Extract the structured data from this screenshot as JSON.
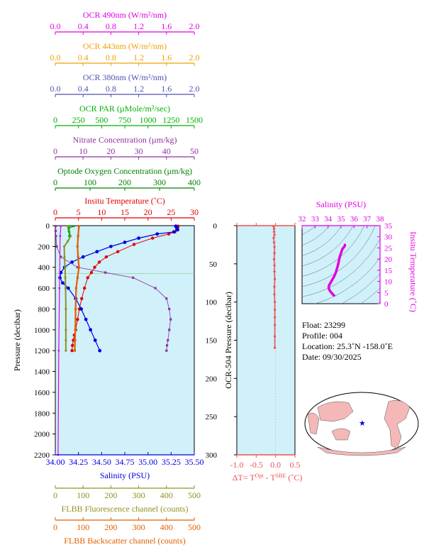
{
  "colors": {
    "ocr490": "#e000e0",
    "ocr443": "#f0a000",
    "ocr380": "#5050b0",
    "par": "#00b000",
    "nitrate": "#9030a0",
    "oxygen": "#008000",
    "temperature": "#e00000",
    "salinity": "#0000e0",
    "fluorescence": "#909020",
    "backscatter": "#e06000",
    "deltaT": "#f05050",
    "panel_bg": "#d0f0fa"
  },
  "top_axes": [
    {
      "key": "ocr490",
      "label": "OCR 490nm (W/m²/nm)",
      "ticks": [
        "0.0",
        "0.4",
        "0.8",
        "1.2",
        "1.6",
        "2.0"
      ],
      "range": [
        0,
        2
      ]
    },
    {
      "key": "ocr443",
      "label": "OCR 443nm (W/m²/nm)",
      "ticks": [
        "0.0",
        "0.4",
        "0.8",
        "1.2",
        "1.6",
        "2.0"
      ],
      "range": [
        0,
        2
      ]
    },
    {
      "key": "ocr380",
      "label": "OCR 380nm (W/m²/nm)",
      "ticks": [
        "0.0",
        "0.4",
        "0.8",
        "1.2",
        "1.6",
        "2.0"
      ],
      "range": [
        0,
        2
      ]
    },
    {
      "key": "par",
      "label": "OCR PAR (µMole/m²/sec)",
      "ticks": [
        "0",
        "250",
        "500",
        "750",
        "1000",
        "1250",
        "1500"
      ],
      "range": [
        0,
        1500
      ]
    },
    {
      "key": "nitrate",
      "label": "Nitrate Concentration (µm/kg)",
      "ticks": [
        "0",
        "10",
        "20",
        "30",
        "40",
        "50"
      ],
      "range": [
        0,
        50
      ]
    },
    {
      "key": "oxygen",
      "label": "Optode Oxygen Concentration (µm/kg)",
      "ticks": [
        "0",
        "100",
        "200",
        "300",
        "400"
      ],
      "range": [
        0,
        400
      ]
    },
    {
      "key": "temperature",
      "label": "Insitu Temperature (˚C)",
      "ticks": [
        "0",
        "5",
        "10",
        "15",
        "20",
        "25",
        "30"
      ],
      "range": [
        0,
        30
      ]
    }
  ],
  "bottom_axes": [
    {
      "key": "salinity",
      "label": "Salinity (PSU)",
      "ticks": [
        "34.00",
        "34.25",
        "34.50",
        "34.75",
        "35.00",
        "35.25",
        "35.50"
      ],
      "range": [
        34.0,
        35.5
      ]
    },
    {
      "key": "fluorescence",
      "label": "FLBB Fluorescence channel (counts)",
      "ticks": [
        "0",
        "100",
        "200",
        "300",
        "400",
        "500"
      ],
      "range": [
        0,
        500
      ]
    },
    {
      "key": "backscatter",
      "label": "FLBB Backscatter channel (counts)",
      "ticks": [
        "0",
        "100",
        "200",
        "300",
        "400",
        "500"
      ],
      "range": [
        0,
        500
      ]
    }
  ],
  "main_yaxis": {
    "label": "Pressure (decibar)",
    "ticks": [
      "0",
      "200",
      "400",
      "600",
      "800",
      "1000",
      "1200",
      "1400",
      "1600",
      "1800",
      "2000",
      "2200"
    ],
    "range": [
      0,
      2200
    ]
  },
  "ocr_panel": {
    "ylabel": "OCR-504 Pressure (decibar)",
    "yticks": [
      "0",
      "50",
      "100",
      "150",
      "200",
      "250",
      "300"
    ],
    "yrange": [
      0,
      300
    ],
    "xticks": [
      "-1.0",
      "-0.5",
      "0.0",
      "0.5"
    ],
    "xrange": [
      -1.0,
      0.5
    ],
    "xlabel_prefix": "ΔT= T",
    "xlabel_sup1": "Opt",
    "xlabel_mid": " - T",
    "xlabel_sup2": "SBE",
    "xlabel_suffix": " (˚C)"
  },
  "ts_panel": {
    "xlabel": "Salinity (PSU)",
    "xticks": [
      "32",
      "33",
      "34",
      "35",
      "36",
      "37",
      "38"
    ],
    "xrange": [
      32,
      38
    ],
    "ylabel": "Insitu Temperature (˚C)",
    "yticks": [
      "0",
      "5",
      "10",
      "15",
      "20",
      "25",
      "30",
      "35"
    ],
    "yrange": [
      0,
      35
    ]
  },
  "info": {
    "float": "Float:  23299",
    "profile": "Profile:  004",
    "location": "Location:  25.3˚N  -158.0˚E",
    "date": "Date:  09/30/2025"
  },
  "chart_data": [
    {
      "type": "line",
      "title": "",
      "y_axis": "Pressure (decibar)",
      "series": [
        {
          "name": "Insitu Temperature (˚C)",
          "x": [
            26.5,
            26.4,
            26.2,
            25.8,
            24.5,
            21.0,
            17.0,
            13.5,
            11.0,
            9.5,
            8.5,
            7.8,
            7.0,
            6.3,
            5.7,
            5.2,
            4.8,
            4.4,
            4.1,
            3.9,
            3.7,
            3.6
          ],
          "y": [
            5,
            20,
            40,
            60,
            80,
            120,
            180,
            250,
            300,
            350,
            400,
            450,
            500,
            600,
            700,
            800,
            900,
            1000,
            1050,
            1100,
            1150,
            1200
          ]
        },
        {
          "name": "Salinity (PSU)",
          "x": [
            35.3,
            35.31,
            35.32,
            35.28,
            35.1,
            34.9,
            34.75,
            34.6,
            34.45,
            34.3,
            34.18,
            34.1,
            34.06,
            34.05,
            34.08,
            34.14,
            34.22,
            34.28,
            34.33,
            34.38,
            34.43,
            34.48
          ],
          "y": [
            5,
            20,
            40,
            60,
            80,
            120,
            160,
            200,
            250,
            300,
            350,
            400,
            450,
            500,
            550,
            600,
            700,
            800,
            900,
            1000,
            1100,
            1200
          ]
        },
        {
          "name": "Nitrate Concentration (µm/kg)",
          "x": [
            0.1,
            0.1,
            0.2,
            0.5,
            2,
            8,
            18,
            28,
            36,
            40,
            41,
            41.5,
            41,
            40.5,
            40.2,
            40
          ],
          "y": [
            5,
            50,
            100,
            200,
            300,
            400,
            450,
            500,
            600,
            700,
            800,
            900,
            1000,
            1100,
            1150,
            1200
          ]
        },
        {
          "name": "FLBB Backscatter channel (counts)",
          "x": [
            85,
            82,
            80,
            82,
            85,
            80,
            75,
            73,
            72,
            71,
            70
          ],
          "y": [
            5,
            100,
            200,
            300,
            400,
            500,
            600,
            800,
            1000,
            1100,
            1200
          ]
        },
        {
          "name": "FLBB Fluorescence channel (counts)",
          "x": [
            45,
            48,
            55,
            45,
            32,
            33,
            35,
            36,
            37,
            38,
            38,
            38,
            38
          ],
          "y": [
            5,
            50,
            100,
            150,
            200,
            300,
            400,
            500,
            600,
            800,
            1000,
            1100,
            1200
          ]
        },
        {
          "name": "OCR PAR (µMole/m²/sec)",
          "x": [
            200,
            150,
            150,
            150
          ],
          "y": [
            5,
            20,
            60,
            100
          ]
        },
        {
          "name": "OCR 490nm (W/m²/nm)",
          "x": [
            0.08,
            0.07,
            0.06,
            0.05,
            0.04
          ],
          "y": [
            5,
            100,
            600,
            1200,
            2200
          ]
        }
      ]
    },
    {
      "type": "scatter",
      "title": "",
      "xlabel": "ΔT= T(Opt) - T(SBE) (˚C)",
      "ylabel": "OCR-504 Pressure (decibar)",
      "x": [
        -0.05,
        -0.04,
        -0.04,
        -0.03,
        -0.05,
        -0.04,
        -0.03,
        -0.03,
        -0.04,
        -0.03,
        -0.03,
        -0.02,
        -0.03,
        -0.03,
        -0.02,
        -0.02,
        -0.02,
        -0.02,
        -0.02,
        -0.02
      ],
      "y": [
        1,
        4,
        8,
        12,
        16,
        22,
        28,
        36,
        44,
        52,
        60,
        70,
        80,
        90,
        100,
        110,
        120,
        130,
        145,
        160
      ]
    },
    {
      "type": "line",
      "title": "",
      "xlabel": "Salinity (PSU)",
      "ylabel": "Insitu Temperature (˚C)",
      "x": [
        35.3,
        35.28,
        35.1,
        34.9,
        34.75,
        34.6,
        34.45,
        34.3,
        34.18,
        34.1,
        34.06,
        34.05,
        34.08,
        34.14,
        34.22,
        34.28,
        34.33,
        34.38,
        34.43,
        34.48
      ],
      "y": [
        26.5,
        25.8,
        24.5,
        21.0,
        17.0,
        14.0,
        12.0,
        10.5,
        9.2,
        8.5,
        7.8,
        7.2,
        6.5,
        5.8,
        5.2,
        4.8,
        4.4,
        4.1,
        3.8,
        3.6
      ]
    }
  ]
}
